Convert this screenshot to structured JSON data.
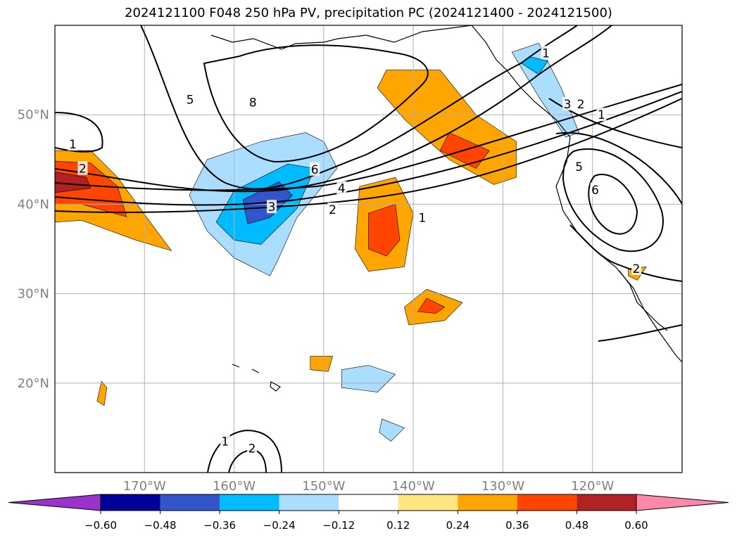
{
  "title": "2024121100 F048 250 hPa PV, precipitation PC (2024121400 - 2024121500)",
  "chart_data": {
    "type": "map",
    "projection": "plate-carree",
    "lon_range": [
      -180,
      -110
    ],
    "lat_range": [
      10,
      60
    ],
    "grid": true,
    "x_ticks": [
      {
        "value": -170,
        "label": "170°W"
      },
      {
        "value": -160,
        "label": "160°W"
      },
      {
        "value": -150,
        "label": "150°W"
      },
      {
        "value": -140,
        "label": "140°W"
      },
      {
        "value": -130,
        "label": "130°W"
      },
      {
        "value": -120,
        "label": "120°W"
      }
    ],
    "y_ticks": [
      {
        "value": 20,
        "label": "20°N"
      },
      {
        "value": 30,
        "label": "30°N"
      },
      {
        "value": 40,
        "label": "40°N"
      },
      {
        "value": 50,
        "label": "50°N"
      }
    ],
    "colorbar": {
      "orientation": "horizontal",
      "extend": "both",
      "boundaries": [
        -0.72,
        -0.6,
        -0.48,
        -0.36,
        -0.24,
        -0.12,
        0.12,
        0.24,
        0.36,
        0.48,
        0.6,
        0.72
      ],
      "colors": [
        "#9933cc",
        "#000099",
        "#3355cc",
        "#00bbff",
        "#aaddff",
        "#ffffff",
        "#ffe680",
        "#ffa500",
        "#ff4500",
        "#b22222",
        "#ff88aa"
      ],
      "tick_labels": [
        "−0.60",
        "−0.48",
        "−0.36",
        "−0.24",
        "−0.12",
        "0.12",
        "0.24",
        "0.36",
        "0.48",
        "0.60"
      ],
      "tick_values": [
        -0.6,
        -0.48,
        -0.36,
        -0.24,
        -0.12,
        0.12,
        0.24,
        0.36,
        0.48,
        0.6
      ]
    },
    "pv_contour_labels": [
      {
        "text": "1",
        "lon": -178.0,
        "lat": 46.7
      },
      {
        "text": "2",
        "lon": -176.9,
        "lat": 44.0
      },
      {
        "text": "5",
        "lon": -164.9,
        "lat": 51.7
      },
      {
        "text": "8",
        "lon": -157.9,
        "lat": 51.4
      },
      {
        "text": "6",
        "lon": -151.0,
        "lat": 43.9
      },
      {
        "text": "4",
        "lon": -148.0,
        "lat": 41.8
      },
      {
        "text": "3",
        "lon": -155.8,
        "lat": 39.7
      },
      {
        "text": "2",
        "lon": -149.0,
        "lat": 39.4
      },
      {
        "text": "1",
        "lon": -139.0,
        "lat": 38.5
      },
      {
        "text": "1",
        "lon": -125.2,
        "lat": 56.9
      },
      {
        "text": "3",
        "lon": -122.8,
        "lat": 51.2
      },
      {
        "text": "2",
        "lon": -121.3,
        "lat": 51.2
      },
      {
        "text": "1",
        "lon": -119.0,
        "lat": 50.0
      },
      {
        "text": "5",
        "lon": -121.5,
        "lat": 44.2
      },
      {
        "text": "6",
        "lon": -119.7,
        "lat": 41.6
      },
      {
        "text": "1",
        "lon": -161.0,
        "lat": 13.5
      },
      {
        "text": "2",
        "lon": -158.0,
        "lat": 12.7
      },
      {
        "text": "2",
        "lon": -115.1,
        "lat": 32.8
      }
    ],
    "precip_regions": [
      {
        "category": 0.24,
        "polygon": [
          [
            -180,
            46
          ],
          [
            -176,
            46
          ],
          [
            -173,
            43
          ],
          [
            -169,
            37.5
          ],
          [
            -167,
            34.8
          ],
          [
            -171,
            36
          ],
          [
            -177,
            38.2
          ],
          [
            -180,
            38
          ]
        ]
      },
      {
        "category": 0.36,
        "polygon": [
          [
            -180,
            44.8
          ],
          [
            -176,
            44.6
          ],
          [
            -173,
            42
          ],
          [
            -172,
            38.6
          ],
          [
            -177,
            40
          ],
          [
            -180,
            40
          ]
        ]
      },
      {
        "category": 0.48,
        "polygon": [
          [
            -180,
            43.6
          ],
          [
            -176.5,
            43
          ],
          [
            -176,
            41.8
          ],
          [
            -180,
            41.3
          ]
        ]
      },
      {
        "category": -0.24,
        "polygon": [
          [
            -163,
            45
          ],
          [
            -157,
            47
          ],
          [
            -152,
            48
          ],
          [
            -150,
            47
          ],
          [
            -148.5,
            44
          ],
          [
            -153,
            38.5
          ],
          [
            -155,
            34
          ],
          [
            -156,
            32
          ],
          [
            -160,
            34
          ],
          [
            -163,
            37
          ],
          [
            -165,
            41
          ]
        ]
      },
      {
        "category": -0.36,
        "polygon": [
          [
            -160,
            41.5
          ],
          [
            -154,
            44.5
          ],
          [
            -151,
            44
          ],
          [
            -153,
            39.5
          ],
          [
            -157,
            35.5
          ],
          [
            -160,
            36
          ],
          [
            -162,
            38
          ]
        ]
      },
      {
        "category": -0.48,
        "polygon": [
          [
            -159,
            40.5
          ],
          [
            -155,
            42.5
          ],
          [
            -153.5,
            41
          ],
          [
            -156,
            38.5
          ],
          [
            -158.5,
            37.8
          ]
        ]
      },
      {
        "category": 0.24,
        "polygon": [
          [
            -146,
            42
          ],
          [
            -142,
            43
          ],
          [
            -140,
            39
          ],
          [
            -141,
            33
          ],
          [
            -145,
            32.5
          ],
          [
            -146.5,
            35
          ]
        ]
      },
      {
        "category": 0.36,
        "polygon": [
          [
            -145,
            39
          ],
          [
            -142,
            40
          ],
          [
            -141.5,
            36
          ],
          [
            -143,
            34.2
          ],
          [
            -145,
            35
          ]
        ]
      },
      {
        "category": 0.24,
        "polygon": [
          [
            -143,
            55
          ],
          [
            -137,
            55
          ],
          [
            -133,
            50
          ],
          [
            -128.5,
            47
          ],
          [
            -128.5,
            43
          ],
          [
            -131,
            42.2
          ],
          [
            -136,
            45
          ],
          [
            -141,
            49.5
          ],
          [
            -144,
            53
          ]
        ]
      },
      {
        "category": 0.36,
        "polygon": [
          [
            -136,
            48
          ],
          [
            -131.5,
            46
          ],
          [
            -133,
            44
          ],
          [
            -137,
            46
          ]
        ]
      },
      {
        "category": -0.24,
        "polygon": [
          [
            -129,
            57
          ],
          [
            -126,
            58
          ],
          [
            -123.5,
            53
          ],
          [
            -121.5,
            48
          ],
          [
            -123,
            47.5
          ],
          [
            -126,
            52
          ]
        ]
      },
      {
        "category": -0.36,
        "polygon": [
          [
            -127,
            56.5
          ],
          [
            -125,
            56
          ],
          [
            -126,
            54.5
          ],
          [
            -128,
            55.8
          ]
        ]
      },
      {
        "category": 0.24,
        "polygon": [
          [
            -138.5,
            30.5
          ],
          [
            -134.5,
            29
          ],
          [
            -136.5,
            27
          ],
          [
            -140.5,
            26.5
          ],
          [
            -141,
            28.5
          ]
        ]
      },
      {
        "category": 0.36,
        "polygon": [
          [
            -138.5,
            29.5
          ],
          [
            -136.5,
            28.5
          ],
          [
            -137.5,
            27.8
          ],
          [
            -139.5,
            28
          ]
        ]
      },
      {
        "category": -0.24,
        "polygon": [
          [
            -148,
            21.5
          ],
          [
            -145,
            22
          ],
          [
            -142,
            21
          ],
          [
            -144,
            19
          ],
          [
            -148,
            19.5
          ]
        ]
      },
      {
        "category": 0.24,
        "polygon": [
          [
            -151.5,
            23
          ],
          [
            -149,
            23
          ],
          [
            -149.5,
            21.3
          ],
          [
            -151.5,
            21.5
          ]
        ]
      },
      {
        "category": -0.24,
        "polygon": [
          [
            -143.5,
            16
          ],
          [
            -141,
            15
          ],
          [
            -142.5,
            13.5
          ],
          [
            -143.8,
            14.5
          ]
        ]
      },
      {
        "category": 0.24,
        "polygon": [
          [
            -174.8,
            20.2
          ],
          [
            -174.2,
            19.5
          ],
          [
            -174.5,
            17.5
          ],
          [
            -175.3,
            18
          ]
        ]
      },
      {
        "category": 0.24,
        "polygon": [
          [
            -116,
            32.8
          ],
          [
            -114,
            33
          ],
          [
            -115,
            31.5
          ],
          [
            -116,
            32
          ]
        ]
      }
    ]
  }
}
